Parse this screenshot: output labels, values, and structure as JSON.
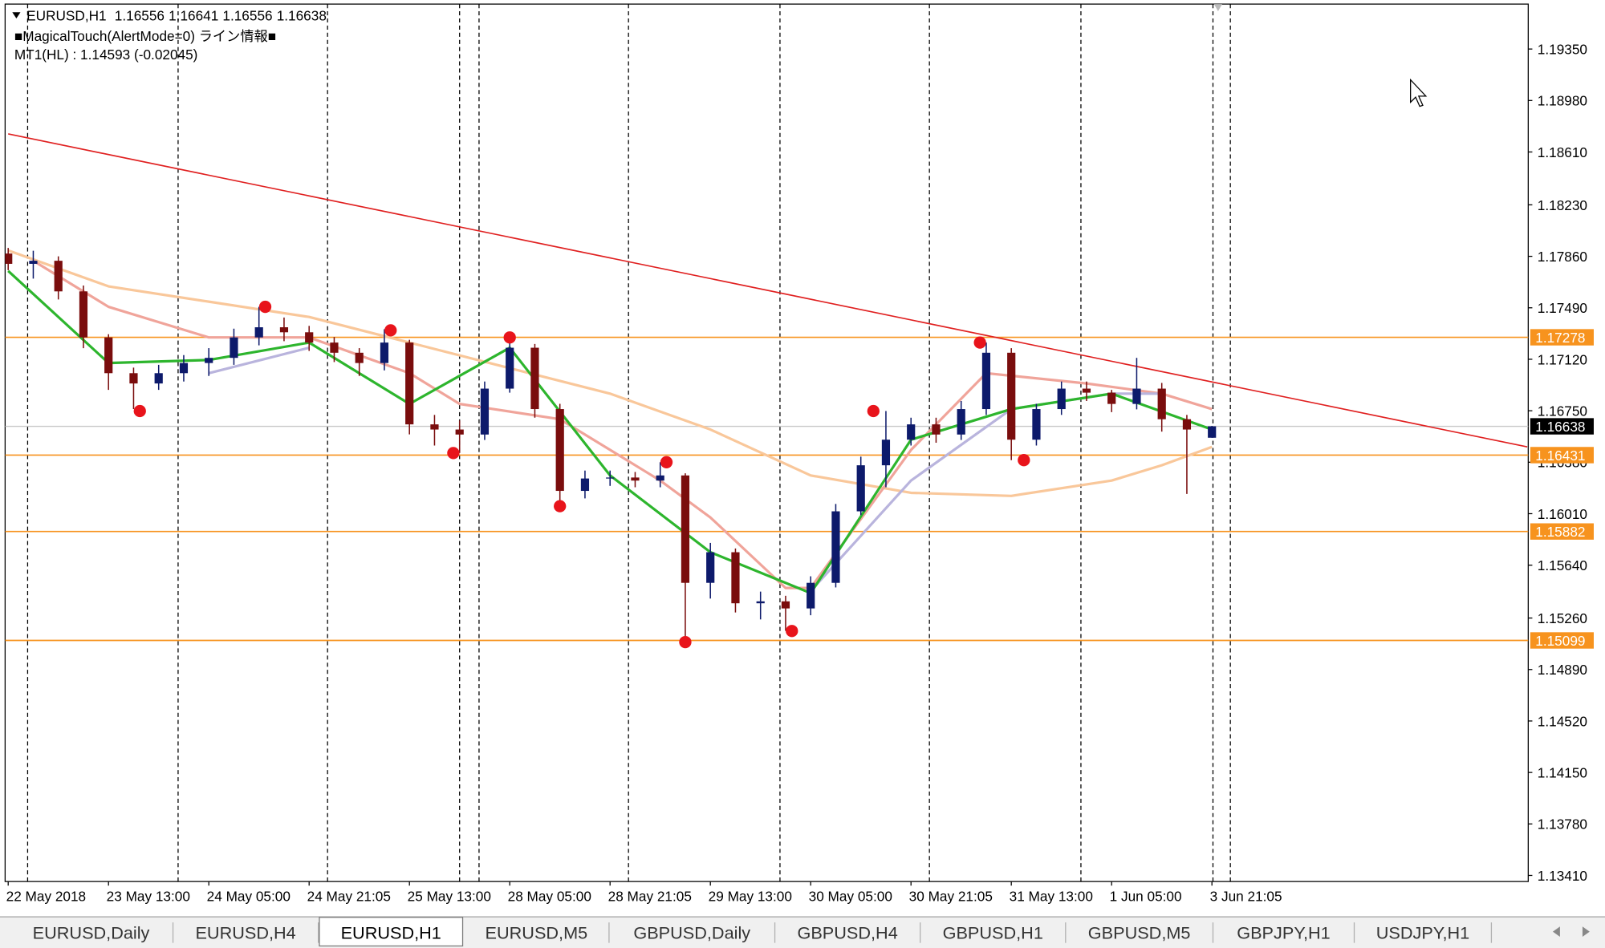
{
  "chart_data": {
    "type": "candlestick",
    "symbol": "EURUSD,H1",
    "indicator_label": "■MagicalTouch(AlertMode=0) ライン情報■",
    "mt_label": "MT1(HL) : 1.14593 (-0.02045)",
    "up_color": "#0d1a6b",
    "down_color": "#7a0d0d",
    "x": [
      0,
      4,
      8,
      12,
      16,
      20,
      24,
      28,
      32,
      36,
      40,
      44,
      48,
      52,
      56,
      60,
      64,
      68,
      72,
      76,
      80,
      84,
      88,
      92,
      96,
      100,
      104,
      108,
      112,
      116,
      120,
      124,
      128,
      132,
      136,
      140,
      144,
      148,
      152,
      156,
      160,
      164,
      168,
      172,
      176,
      180,
      184,
      188,
      192
    ],
    "open": [
      1.1788,
      1.17806,
      1.17828,
      1.17608,
      1.17277,
      1.1702,
      1.16946,
      1.1702,
      1.17093,
      1.1713,
      1.17277,
      1.1735,
      1.17314,
      1.1724,
      1.17167,
      1.17093,
      1.1724,
      1.16652,
      1.16615,
      1.16579,
      1.16909,
      1.17203,
      1.16762,
      1.16174,
      1.16263,
      1.1627,
      1.16248,
      1.16285,
      1.15513,
      1.15733,
      1.15366,
      1.1538,
      1.15329,
      1.15513,
      1.16027,
      1.16358,
      1.16542,
      1.16652,
      1.16579,
      1.16762,
      1.17167,
      1.16542,
      1.16762,
      1.16909,
      1.1688,
      1.16799,
      1.16909,
      1.16689,
      1.16556
    ],
    "high": [
      1.1792,
      1.179,
      1.1786,
      1.1765,
      1.173,
      1.1706,
      1.1708,
      1.1715,
      1.172,
      1.1734,
      1.17497,
      1.1742,
      1.1736,
      1.1728,
      1.172,
      1.17336,
      1.1726,
      1.1672,
      1.1668,
      1.1696,
      1.17292,
      1.1723,
      1.168,
      1.1632,
      1.1632,
      1.1631,
      1.1638,
      1.163,
      1.158,
      1.1576,
      1.1545,
      1.1542,
      1.1556,
      1.1608,
      1.1642,
      1.16748,
      1.167,
      1.167,
      1.1682,
      1.1724,
      1.172,
      1.168,
      1.1696,
      1.1696,
      1.169,
      1.1713,
      1.1695,
      1.1672,
      1.16641
    ],
    "low": [
      1.1776,
      1.177,
      1.1755,
      1.172,
      1.169,
      1.16762,
      1.169,
      1.1696,
      1.17,
      1.1708,
      1.1722,
      1.1725,
      1.1718,
      1.171,
      1.17,
      1.1704,
      1.1658,
      1.165,
      1.16446,
      1.1654,
      1.1688,
      1.167,
      1.16064,
      1.1612,
      1.1621,
      1.162,
      1.162,
      1.15087,
      1.154,
      1.153,
      1.1525,
      1.15168,
      1.1528,
      1.1548,
      1.16,
      1.162,
      1.165,
      1.1652,
      1.1654,
      1.1672,
      1.16395,
      1.165,
      1.1672,
      1.1682,
      1.1674,
      1.1676,
      1.166,
      1.16152,
      1.16556
    ],
    "close": [
      1.17806,
      1.17828,
      1.17608,
      1.17277,
      1.1702,
      1.16946,
      1.1702,
      1.17093,
      1.1713,
      1.17277,
      1.1735,
      1.17314,
      1.1724,
      1.17167,
      1.17093,
      1.1724,
      1.16652,
      1.16615,
      1.16579,
      1.16909,
      1.17203,
      1.16762,
      1.16174,
      1.16263,
      1.1627,
      1.16248,
      1.16285,
      1.15513,
      1.15733,
      1.15366,
      1.1538,
      1.15329,
      1.15513,
      1.16027,
      1.16358,
      1.16542,
      1.16652,
      1.16579,
      1.16762,
      1.17167,
      1.16542,
      1.16762,
      1.16909,
      1.1688,
      1.16799,
      1.16909,
      1.16689,
      1.16615,
      1.16638
    ],
    "ma": [
      {
        "color": "#f9c79a",
        "x": [
          0,
          16,
          32,
          48,
          64,
          80,
          96,
          112,
          128,
          144,
          160,
          176,
          184,
          192
        ],
        "values": [
          1.17902,
          1.17644,
          1.17534,
          1.17424,
          1.1724,
          1.17056,
          1.16873,
          1.16615,
          1.16285,
          1.1616,
          1.16138,
          1.16248,
          1.16358,
          1.1649
        ]
      },
      {
        "color": "#f0a49a",
        "x": [
          4,
          16,
          32,
          48,
          64,
          72,
          88,
          104,
          112,
          124,
          128,
          144,
          156,
          172,
          184,
          192
        ],
        "values": [
          1.17828,
          1.17497,
          1.17277,
          1.17277,
          1.1702,
          1.16799,
          1.16689,
          1.16248,
          1.15983,
          1.15476,
          1.15476,
          1.16468,
          1.1702,
          1.16946,
          1.16873,
          1.16762
        ]
      },
      {
        "color": "#b9b4dd",
        "x": [
          32,
          48,
          64,
          128,
          144,
          160,
          176,
          184
        ],
        "values": [
          1.1702,
          1.17203,
          null,
          1.15454,
          1.16248,
          1.16762,
          1.16873,
          1.16873
        ]
      },
      {
        "color": "#2db52d",
        "x": [
          0,
          16,
          32,
          48,
          64,
          80,
          96,
          112,
          128,
          144,
          160,
          176,
          192
        ],
        "values": [
          1.17755,
          1.17093,
          1.17115,
          1.1724,
          1.16799,
          1.17203,
          1.16285,
          1.15733,
          1.15439,
          1.16542,
          1.16762,
          1.16873,
          1.16615
        ]
      }
    ],
    "fractals": {
      "color": "#e8141b",
      "x": [
        21,
        41,
        61,
        71,
        80,
        88,
        105,
        108,
        125,
        138,
        155,
        162
      ],
      "values": [
        1.16748,
        1.17497,
        1.17328,
        1.16446,
        1.17277,
        1.16064,
        1.1638,
        1.15087,
        1.15167,
        1.16748,
        1.1724,
        1.16395
      ]
    },
    "trendline": {
      "color": "#e02020",
      "x": [
        0,
        242.3
      ],
      "values": [
        1.1874,
        1.1649
      ]
    },
    "levels": {
      "color": "#f7931e",
      "values": [
        1.17278,
        1.16431,
        1.15882,
        1.15099
      ]
    },
    "current_color": "#000000",
    "ylim": [
      1.13366,
      1.19673
    ],
    "yticks": [
      {
        "value": 1.1935,
        "label": "1.19350"
      },
      {
        "value": 1.1898,
        "label": "1.18980"
      },
      {
        "value": 1.1861,
        "label": "1.18610"
      },
      {
        "value": 1.1823,
        "label": "1.18230"
      },
      {
        "value": 1.1786,
        "label": "1.17860"
      },
      {
        "value": 1.1749,
        "label": "1.17490"
      },
      {
        "value": 1.1712,
        "label": "1.17120"
      },
      {
        "value": 1.1675,
        "label": "1.16750"
      },
      {
        "value": 1.1638,
        "label": "1.16380"
      },
      {
        "value": 1.1601,
        "label": "1.16010"
      },
      {
        "value": 1.1564,
        "label": "1.15640"
      },
      {
        "value": 1.1526,
        "label": "1.15260"
      },
      {
        "value": 1.1489,
        "label": "1.14890"
      },
      {
        "value": 1.1452,
        "label": "1.14520"
      },
      {
        "value": 1.1415,
        "label": "1.14150"
      },
      {
        "value": 1.1378,
        "label": "1.13780"
      },
      {
        "value": 1.1341,
        "label": "1.13410"
      }
    ],
    "xlim": [
      -0.49,
      242.45
    ],
    "xticks": [
      {
        "value": 0,
        "label": "22 May 2018"
      },
      {
        "value": 16,
        "label": "23 May 13:00"
      },
      {
        "value": 32,
        "label": "24 May 05:00"
      },
      {
        "value": 48,
        "label": "24 May 21:05"
      },
      {
        "value": 64,
        "label": "25 May 13:00"
      },
      {
        "value": 80,
        "label": "28 May 05:00"
      },
      {
        "value": 96,
        "label": "28 May 21:05"
      },
      {
        "value": 112,
        "label": "29 May 13:00"
      },
      {
        "value": 128,
        "label": "30 May 05:00"
      },
      {
        "value": 144,
        "label": "30 May 21:05"
      },
      {
        "value": 160,
        "label": "31 May 13:00"
      },
      {
        "value": 176,
        "label": "1 Jun 05:00"
      },
      {
        "value": 192,
        "label": "3 Jun 21:05"
      }
    ]
  },
  "tabs": {
    "items": [
      "EURUSD,Daily",
      "EURUSD,H4",
      "EURUSD,H1",
      "EURUSD,M5",
      "GBPUSD,Daily",
      "GBPUSD,H4",
      "GBPUSD,H1",
      "GBPUSD,M5",
      "GBPJPY,H1",
      "USDJPY,H1"
    ],
    "active": 2
  }
}
